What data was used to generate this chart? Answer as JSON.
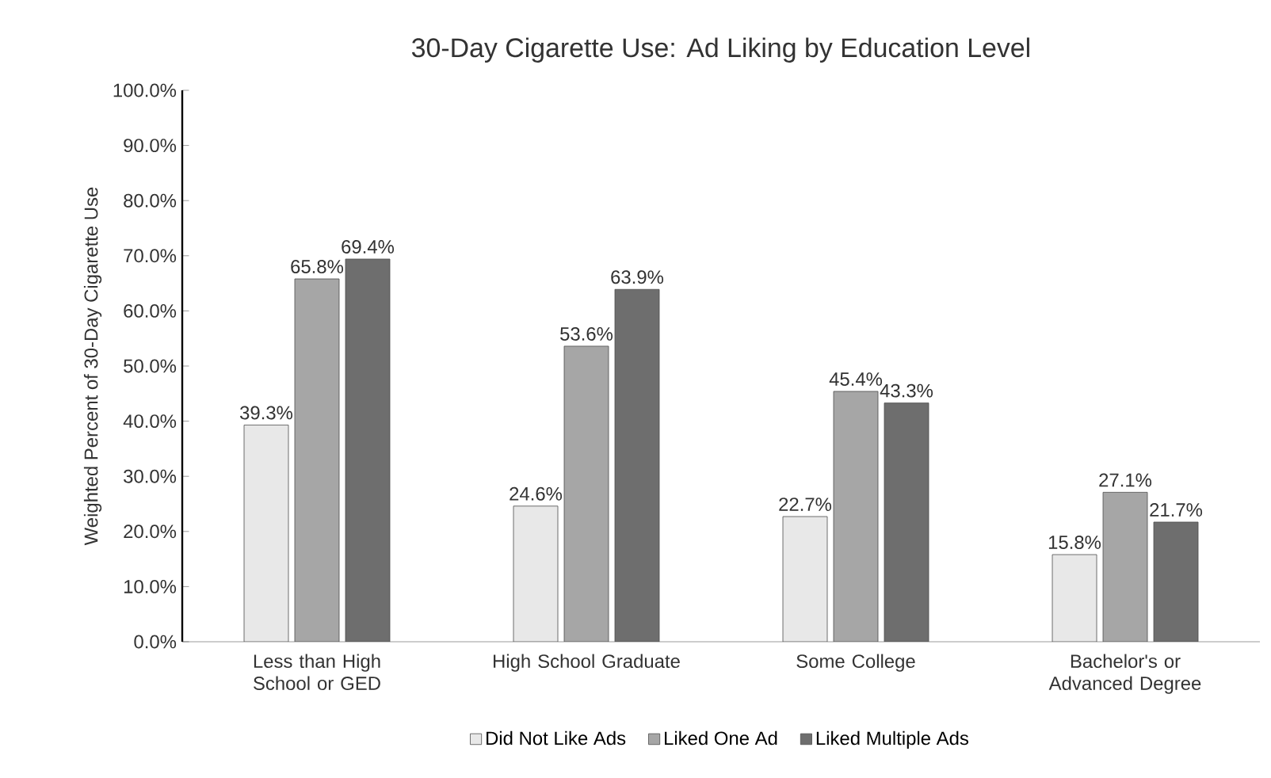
{
  "chart_data": {
    "type": "bar",
    "title": "30-Day Cigarette Use: Ad Liking by Education Level",
    "ylabel": "Weighted Percent of 30-Day Cigarette Use",
    "categories": [
      "Less than High School or GED",
      "High School Graduate",
      "Some College",
      "Bachelor's or Advanced Degree"
    ],
    "series": [
      {
        "name": "Did Not Like Ads",
        "color": "#e8e8e8",
        "values": [
          39.3,
          24.6,
          22.7,
          15.8
        ],
        "value_labels": [
          "39.3%",
          "24.6%",
          "22.7%",
          "15.8%"
        ]
      },
      {
        "name": "Liked One Ad",
        "color": "#a6a6a6",
        "values": [
          65.8,
          53.6,
          45.4,
          27.1
        ],
        "value_labels": [
          "65.8%",
          "53.6%",
          "45.4%",
          "27.1%"
        ]
      },
      {
        "name": "Liked Multiple Ads",
        "color": "#6e6e6e",
        "values": [
          69.4,
          63.9,
          43.3,
          21.7
        ],
        "value_labels": [
          "69.4%",
          "63.9%",
          "43.3%",
          "21.7%"
        ]
      }
    ],
    "ylim": [
      0,
      100
    ],
    "yticks": [
      {
        "value": 0,
        "label": "0.0%"
      },
      {
        "value": 10,
        "label": "10.0%"
      },
      {
        "value": 20,
        "label": "20.0%"
      },
      {
        "value": 30,
        "label": "30.0%"
      },
      {
        "value": 40,
        "label": "40.0%"
      },
      {
        "value": 50,
        "label": "50.0%"
      },
      {
        "value": 60,
        "label": "60.0%"
      },
      {
        "value": 70,
        "label": "70.0%"
      },
      {
        "value": 80,
        "label": "80.0%"
      },
      {
        "value": 90,
        "label": "90.0%"
      },
      {
        "value": 100,
        "label": "100.0%"
      }
    ],
    "grid": false,
    "legend": "bottom"
  }
}
